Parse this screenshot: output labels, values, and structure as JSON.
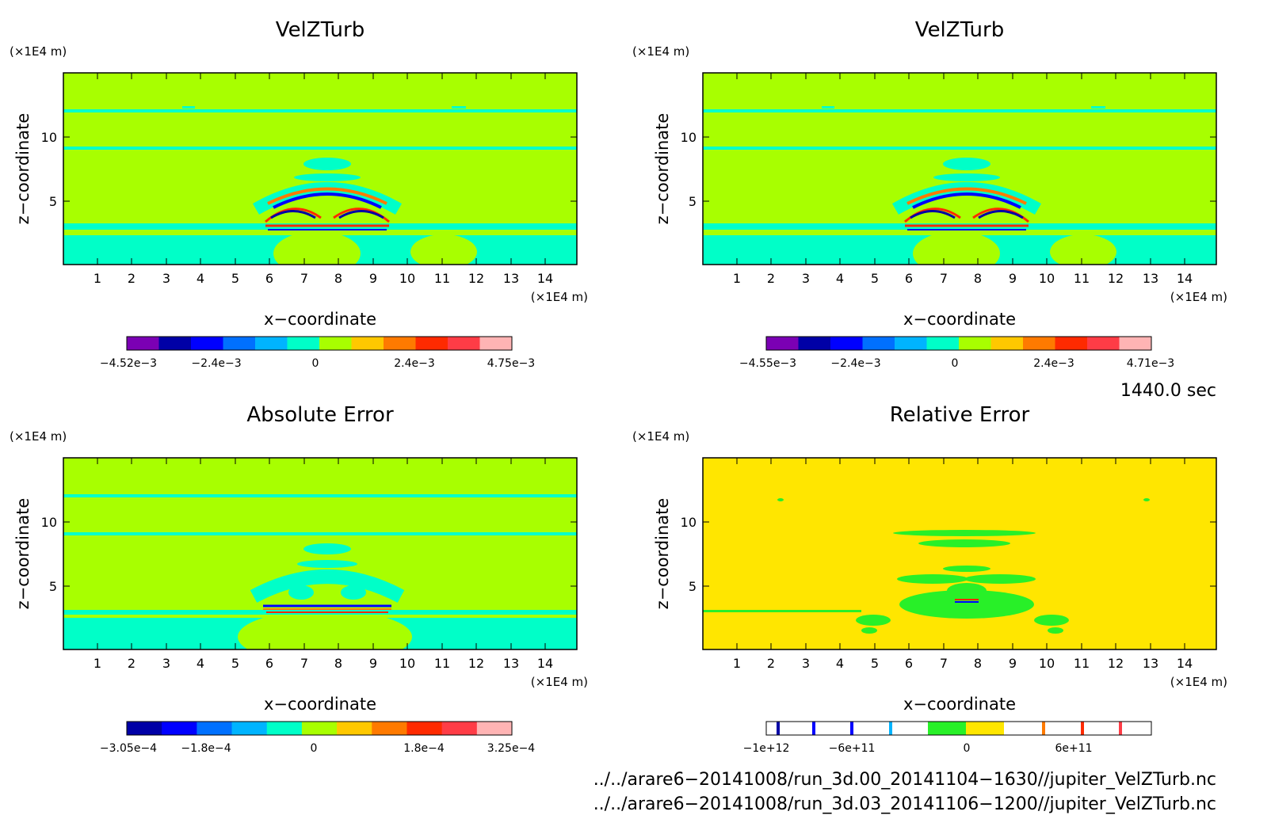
{
  "panels": [
    {
      "title": "VelZTurb",
      "xlabel": "x−coordinate",
      "ylabel": "z−coordinate",
      "x_unit": "(×1E4 m)",
      "y_unit": "(×1E4 m)",
      "x_ticks": [
        "1",
        "2",
        "3",
        "4",
        "5",
        "6",
        "7",
        "8",
        "9",
        "10",
        "11",
        "12",
        "13",
        "14"
      ],
      "y_ticks": [
        "5",
        "10"
      ],
      "colorbar_labels": [
        "−4.52e−3",
        "−2.4e−3",
        "0",
        "2.4e−3",
        "4.75e−3"
      ]
    },
    {
      "title": "VelZTurb",
      "xlabel": "x−coordinate",
      "ylabel": "z−coordinate",
      "x_unit": "(×1E4 m)",
      "y_unit": "(×1E4 m)",
      "x_ticks": [
        "1",
        "2",
        "3",
        "4",
        "5",
        "6",
        "7",
        "8",
        "9",
        "10",
        "11",
        "12",
        "13",
        "14"
      ],
      "y_ticks": [
        "5",
        "10"
      ],
      "colorbar_labels": [
        "−4.55e−3",
        "−2.4e−3",
        "0",
        "2.4e−3",
        "4.71e−3"
      ]
    },
    {
      "title": "Absolute Error",
      "xlabel": "x−coordinate",
      "ylabel": "z−coordinate",
      "x_unit": "(×1E4 m)",
      "y_unit": "(×1E4 m)",
      "x_ticks": [
        "1",
        "2",
        "3",
        "4",
        "5",
        "6",
        "7",
        "8",
        "9",
        "10",
        "11",
        "12",
        "13",
        "14"
      ],
      "y_ticks": [
        "5",
        "10"
      ],
      "colorbar_labels": [
        "−3.05e−4",
        "−1.8e−4",
        "0",
        "1.8e−4",
        "3.25e−4"
      ]
    },
    {
      "title": "Relative Error",
      "xlabel": "x−coordinate",
      "ylabel": "z−coordinate",
      "x_unit": "(×1E4 m)",
      "y_unit": "(×1E4 m)",
      "x_ticks": [
        "1",
        "2",
        "3",
        "4",
        "5",
        "6",
        "7",
        "8",
        "9",
        "10",
        "11",
        "12",
        "13",
        "14"
      ],
      "y_ticks": [
        "5",
        "10"
      ],
      "colorbar_labels": [
        "−1e+12",
        "−6e+11",
        "0",
        "6e+11"
      ]
    }
  ],
  "time_label": "1440.0 sec",
  "file_paths": [
    "../../arare6−20141008/run_3d.00_20141104−1630//jupiter_VelZTurb.nc",
    "../../arare6−20141008/run_3d.03_20141106−1200//jupiter_VelZTurb.nc"
  ],
  "colors": {
    "palette": [
      "#7b00b4",
      "#0000a6",
      "#0000ff",
      "#0070ff",
      "#00b4ff",
      "#00ffc8",
      "#a8ff00",
      "#ffc800",
      "#ff7a00",
      "#ff2a00",
      "#ff3c46",
      "#ffb4b4"
    ],
    "relative_error_background": "#ffe600",
    "relative_error_feature": "#28f028"
  },
  "chart_data": [
    {
      "type": "heatmap",
      "title": "VelZTurb",
      "xlabel": "x−coordinate",
      "ylabel": "z−coordinate",
      "xlim": [
        0.05,
        14.9
      ],
      "ylim": [
        0,
        14.5
      ],
      "colorbar": {
        "min": -0.00452,
        "max": 0.00475,
        "tick_values": [
          -0.00452,
          -0.0024,
          0,
          0.0024,
          0.00475
        ]
      },
      "features": [
        "near-zero background",
        "thin negative bands near z=12, z=9, z=2.5-3",
        "wave pattern centered x≈7.5, z≈3-6 with alternating positive/negative arcs"
      ]
    },
    {
      "type": "heatmap",
      "title": "VelZTurb",
      "xlabel": "x−coordinate",
      "ylabel": "z−coordinate",
      "xlim": [
        0.05,
        14.9
      ],
      "ylim": [
        0,
        14.5
      ],
      "colorbar": {
        "min": -0.00455,
        "max": 0.00471,
        "tick_values": [
          -0.00455,
          -0.0024,
          0,
          0.0024,
          0.00471
        ]
      }
    },
    {
      "type": "heatmap",
      "title": "Absolute Error",
      "xlabel": "x−coordinate",
      "ylabel": "z−coordinate",
      "xlim": [
        0.05,
        14.9
      ],
      "ylim": [
        0,
        14.5
      ],
      "colorbar": {
        "min": -0.000305,
        "max": 0.000325,
        "tick_values": [
          -0.000305,
          -0.00018,
          0,
          0.00018,
          0.000325
        ]
      }
    },
    {
      "type": "heatmap",
      "title": "Relative Error",
      "xlabel": "x−coordinate",
      "ylabel": "z−coordinate",
      "xlim": [
        0.05,
        14.9
      ],
      "ylim": [
        0,
        14.5
      ],
      "colorbar": {
        "min": -1000000000000.0,
        "max": 1000000000000.0,
        "tick_values": [
          -1000000000000.0,
          -600000000000.0,
          0,
          600000000000.0
        ]
      }
    }
  ]
}
